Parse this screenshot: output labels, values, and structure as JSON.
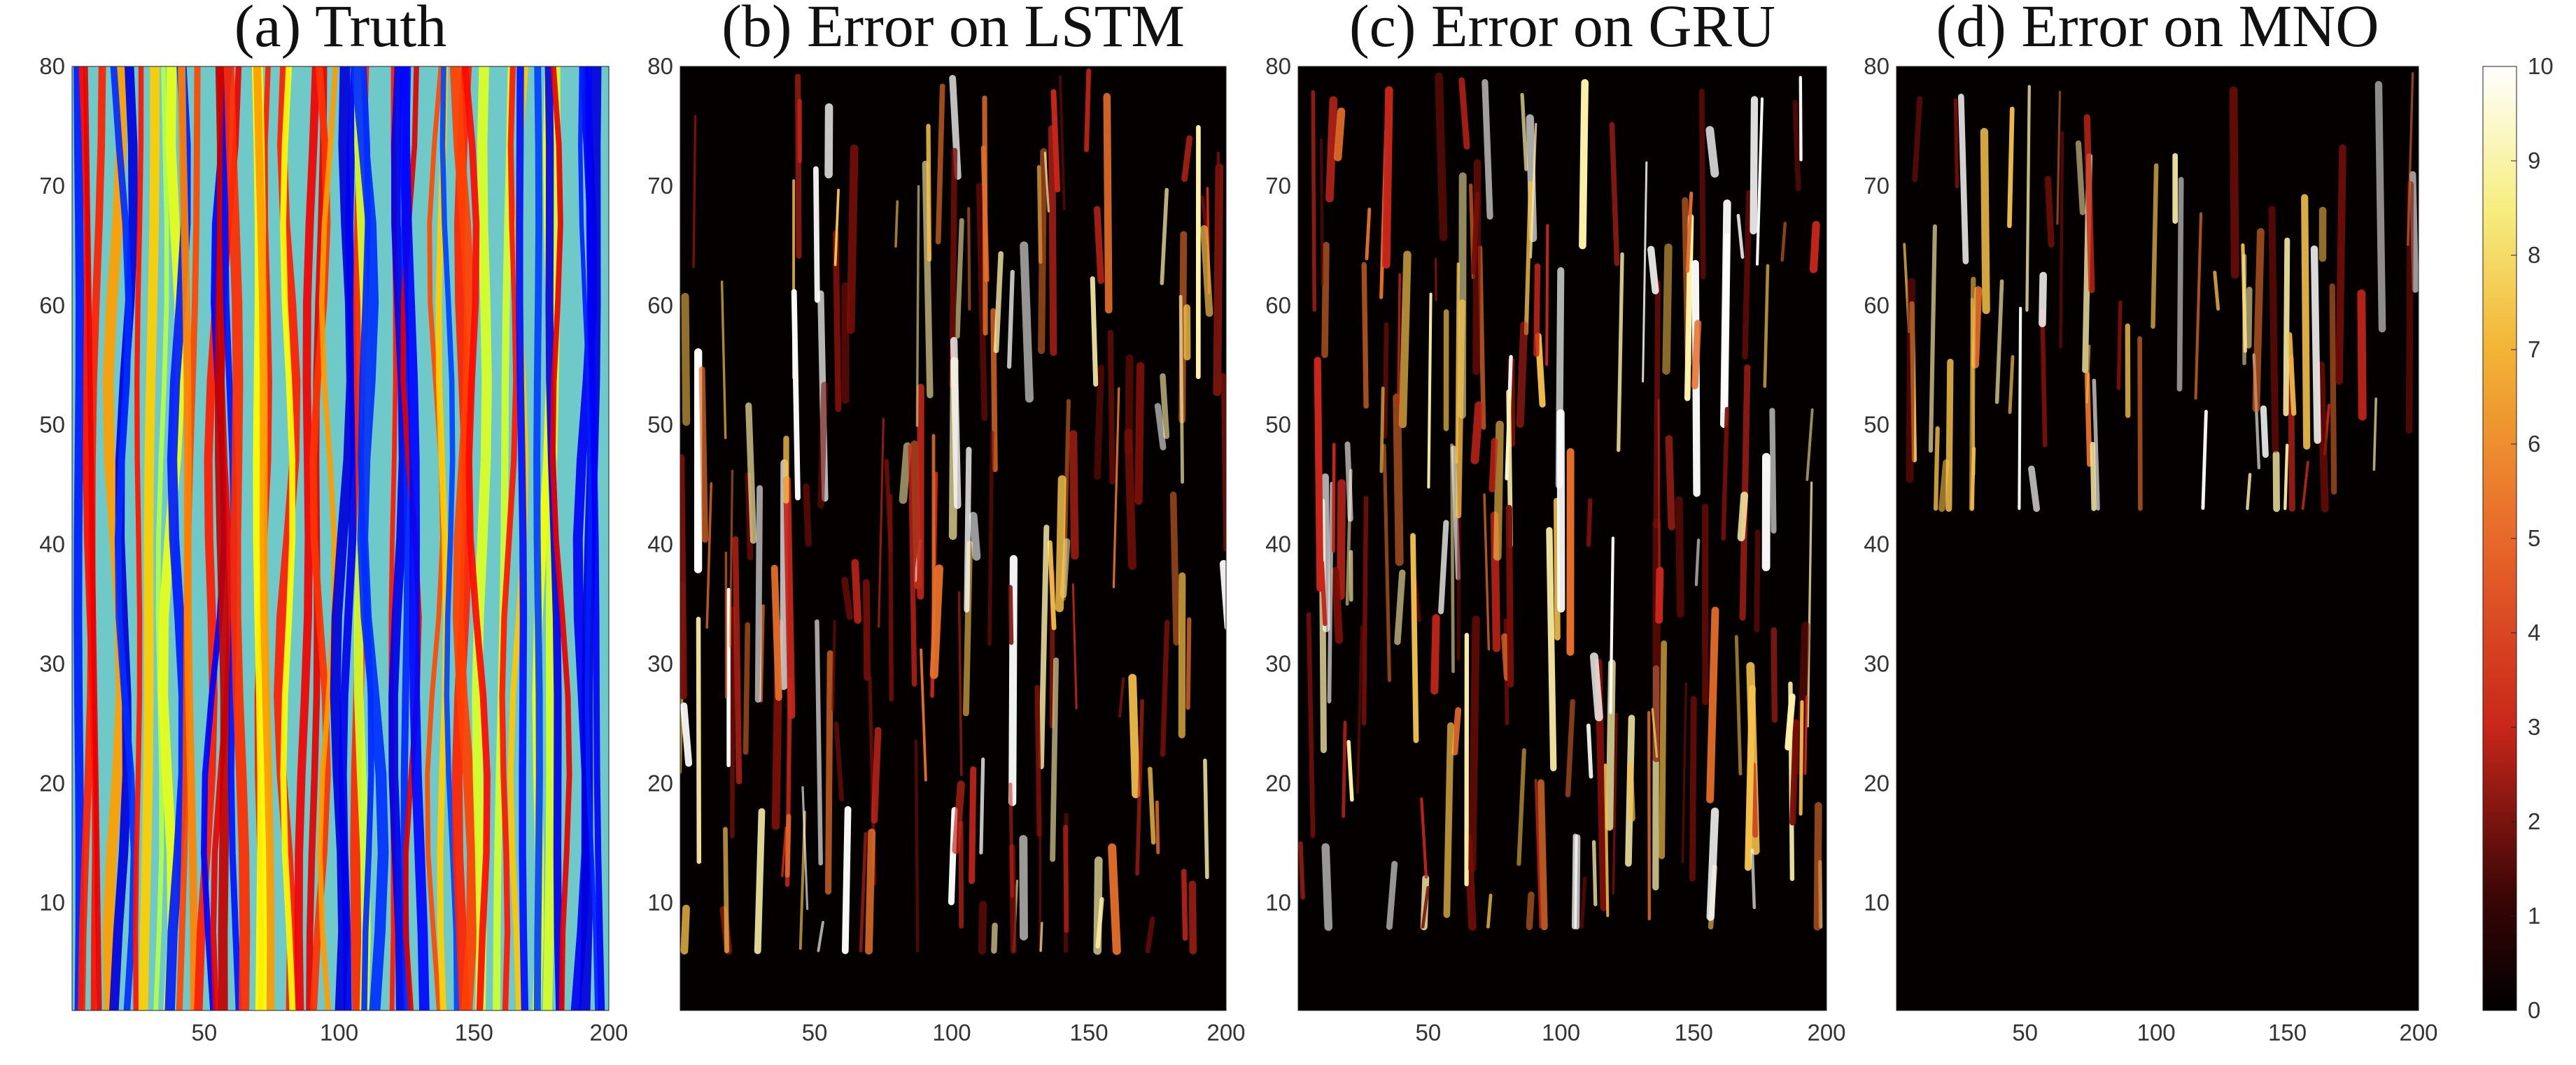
{
  "chart_data": [
    {
      "type": "heatmap",
      "title": "(a) Truth",
      "xlabel": "",
      "ylabel": "",
      "xlim": [
        1,
        200
      ],
      "ylim": [
        1,
        80
      ],
      "x_ticks": [
        "50",
        "100",
        "150",
        "200"
      ],
      "y_ticks": [
        "10",
        "20",
        "30",
        "40",
        "50",
        "60",
        "70",
        "80"
      ],
      "colormap": "jet",
      "pattern": "truth"
    },
    {
      "type": "heatmap",
      "title": "(b) Error on LSTM",
      "xlabel": "",
      "ylabel": "",
      "xlim": [
        1,
        200
      ],
      "ylim": [
        1,
        80
      ],
      "x_ticks": [
        "50",
        "100",
        "150",
        "200"
      ],
      "y_ticks": [
        "10",
        "20",
        "30",
        "40",
        "50",
        "60",
        "70",
        "80"
      ],
      "colormap": "hot",
      "clim": [
        0,
        10
      ],
      "error_onset_y": 8
    },
    {
      "type": "heatmap",
      "title": "(c) Error on GRU",
      "xlabel": "",
      "ylabel": "",
      "xlim": [
        1,
        200
      ],
      "ylim": [
        1,
        80
      ],
      "x_ticks": [
        "50",
        "100",
        "150",
        "200"
      ],
      "y_ticks": [
        "10",
        "20",
        "30",
        "40",
        "50",
        "60",
        "70",
        "80"
      ],
      "colormap": "hot",
      "clim": [
        0,
        10
      ],
      "error_onset_y": 10
    },
    {
      "type": "heatmap",
      "title": "(d) Error on MNO",
      "xlabel": "",
      "ylabel": "",
      "xlim": [
        1,
        200
      ],
      "ylim": [
        1,
        80
      ],
      "x_ticks": [
        "50",
        "100",
        "150",
        "200"
      ],
      "y_ticks": [
        "10",
        "20",
        "30",
        "40",
        "50",
        "60",
        "70",
        "80"
      ],
      "colormap": "hot",
      "clim": [
        0,
        10
      ],
      "error_onset_y": 45
    }
  ],
  "colorbar": {
    "range": [
      0,
      10
    ],
    "ticks": [
      "0",
      "1",
      "2",
      "3",
      "4",
      "5",
      "6",
      "7",
      "8",
      "9",
      "10"
    ],
    "colormap": "hot"
  }
}
